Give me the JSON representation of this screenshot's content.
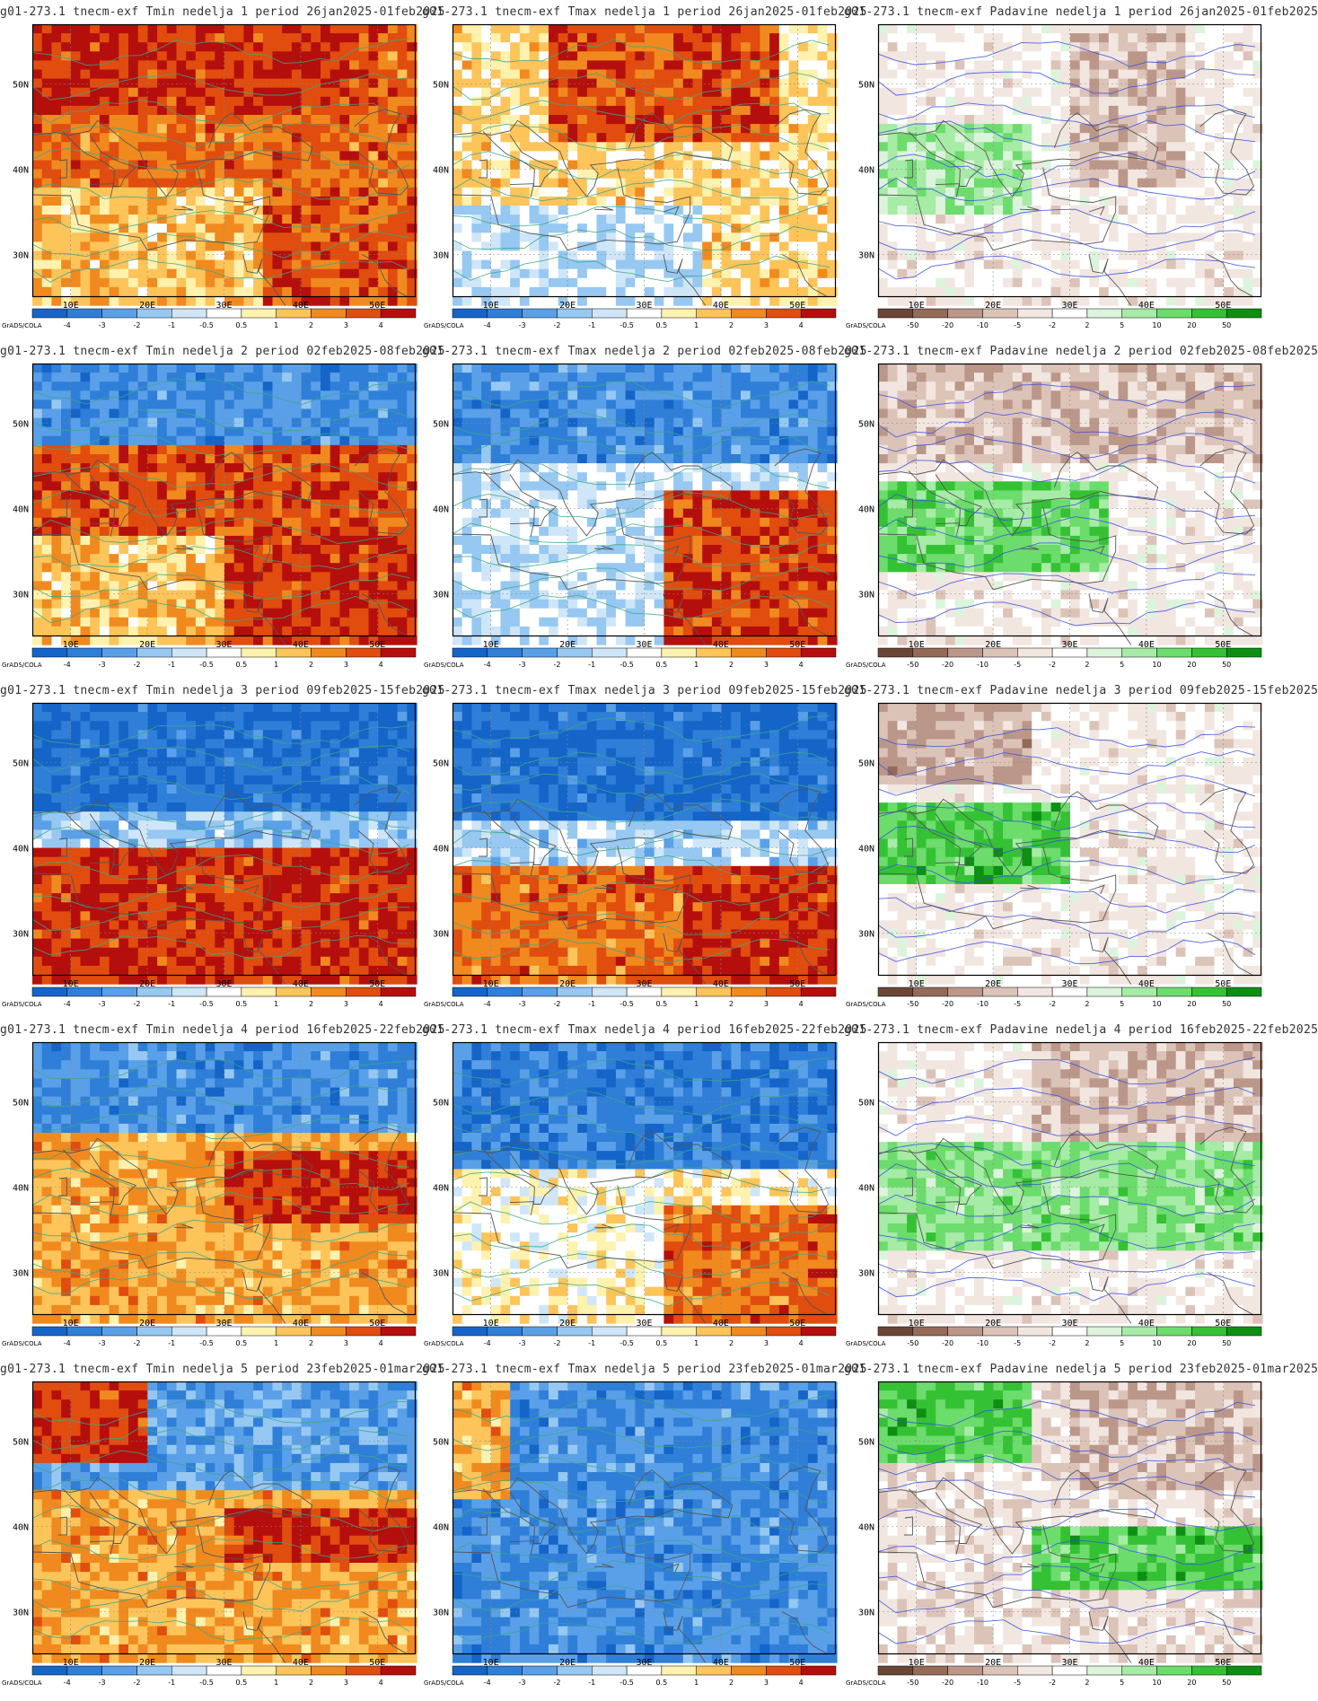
{
  "colors": {
    "temp": [
      "#1565c8",
      "#2f7fd8",
      "#5aa0e8",
      "#96c8f2",
      "#cfe6f8",
      "#ffffff",
      "#fff2ae",
      "#fdc45a",
      "#f08a1e",
      "#e04d0e",
      "#b40f0c"
    ],
    "precip": [
      "#6b4636",
      "#946a58",
      "#bb978a",
      "#dcc3b8",
      "#f2e6e0",
      "#ffffff",
      "#dcf4dc",
      "#a6eba6",
      "#6cdc6c",
      "#34c234",
      "#0d8f14"
    ],
    "contour_temp": "#3aa887",
    "contour_precip": "#3550e0",
    "boundary": "#555555"
  },
  "map": {
    "lat_labels": [
      "50N",
      "40N",
      "30N"
    ],
    "lon_labels": [
      "10E",
      "20E",
      "30E",
      "40E",
      "50E"
    ]
  },
  "colorbars": {
    "credit": "GrADS/COLA",
    "temp_labels": [
      "-4",
      "-3",
      "-2",
      "-1",
      "-0.5",
      "0.5",
      "1",
      "2",
      "3",
      "4"
    ],
    "precip_labels": [
      "-50",
      "-20",
      "-10",
      "-5",
      "-2",
      "2",
      "5",
      "10",
      "20",
      "50"
    ]
  },
  "panels": [
    {
      "title": "g01-273.1 tnecm-exf Tmin nedelja 1 period 26jan2025-01feb2025",
      "var": "temp"
    },
    {
      "title": "g01-273.1 tnecm-exf Tmax nedelja 1 period 26jan2025-01feb2025",
      "var": "temp"
    },
    {
      "title": "g01-273.1 tnecm-exf Padavine nedelja 1 period 26jan2025-01feb2025",
      "var": "precip"
    },
    {
      "title": "g01-273.1 tnecm-exf Tmin nedelja 2 period 02feb2025-08feb2025",
      "var": "temp"
    },
    {
      "title": "g01-273.1 tnecm-exf Tmax nedelja 2 period 02feb2025-08feb2025",
      "var": "temp"
    },
    {
      "title": "g01-273.1 tnecm-exf Padavine nedelja 2 period 02feb2025-08feb2025",
      "var": "precip"
    },
    {
      "title": "g01-273.1 tnecm-exf Tmin nedelja 3 period 09feb2025-15feb2025",
      "var": "temp"
    },
    {
      "title": "g01-273.1 tnecm-exf Tmax nedelja 3 period 09feb2025-15feb2025",
      "var": "temp"
    },
    {
      "title": "g01-273.1 tnecm-exf Padavine nedelja 3 period 09feb2025-15feb2025",
      "var": "precip"
    },
    {
      "title": "g01-273.1 tnecm-exf Tmin nedelja 4 period 16feb2025-22feb2025",
      "var": "temp"
    },
    {
      "title": "g01-273.1 tnecm-exf Tmax nedelja 4 period 16feb2025-22feb2025",
      "var": "temp"
    },
    {
      "title": "g01-273.1 tnecm-exf Padavine nedelja 4 period 16feb2025-22feb2025",
      "var": "precip"
    },
    {
      "title": "g01-273.1 tnecm-exf Tmin nedelja 5 period 23feb2025-01mar2025",
      "var": "temp"
    },
    {
      "title": "g01-273.1 tnecm-exf Tmax nedelja 5 period 23feb2025-01mar2025",
      "var": "temp"
    },
    {
      "title": "g01-273.1 tnecm-exf Padavine nedelja 5 period 23feb2025-01mar2025",
      "var": "precip"
    }
  ]
}
